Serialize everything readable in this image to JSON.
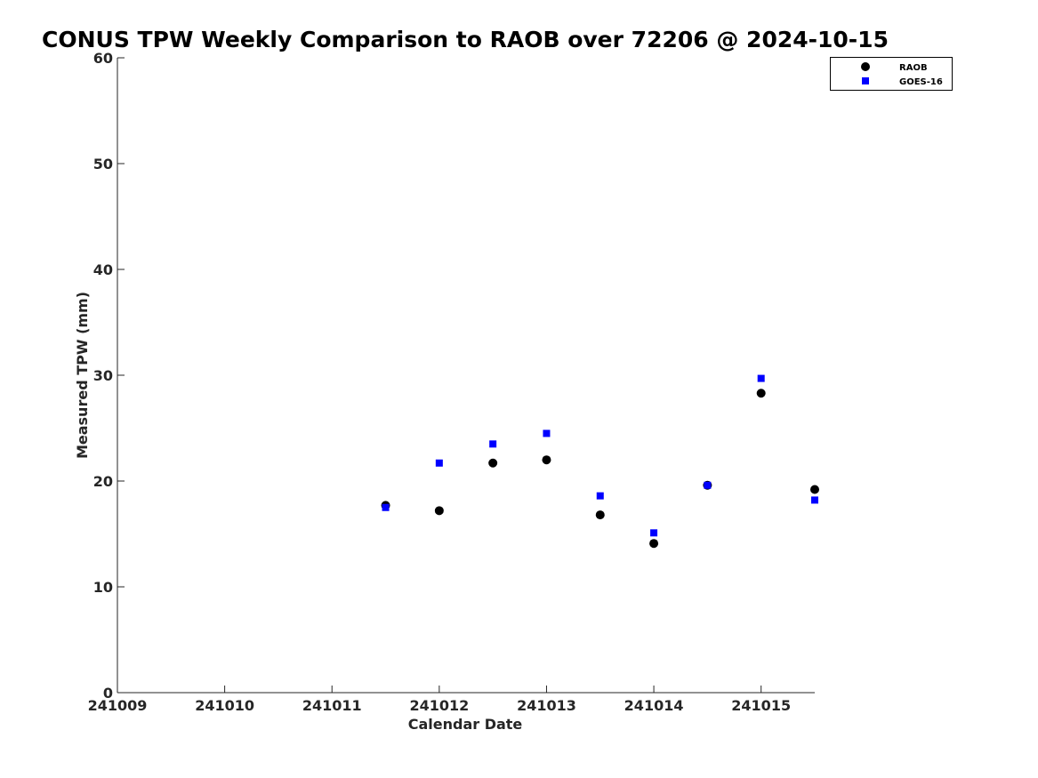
{
  "chart_data": {
    "type": "scatter",
    "title": "CONUS TPW Weekly Comparison to RAOB over 72206 @ 2024-10-15",
    "xlabel": "Calendar Date",
    "ylabel": "Measured TPW (mm)",
    "xlim": [
      241009,
      241015.5
    ],
    "ylim": [
      0,
      60
    ],
    "xticks": [
      241009,
      241010,
      241011,
      241012,
      241013,
      241014,
      241015
    ],
    "xtick_labels": [
      "241009",
      "241010",
      "241011",
      "241012",
      "241013",
      "241014",
      "241015"
    ],
    "yticks": [
      0,
      10,
      20,
      30,
      40,
      50,
      60
    ],
    "ytick_labels": [
      "0",
      "10",
      "20",
      "30",
      "40",
      "50",
      "60"
    ],
    "grid": false,
    "legend_position": "top-right",
    "series": [
      {
        "name": "RAOB",
        "marker": "circle",
        "color": "#000000",
        "x": [
          241011.5,
          241012,
          241012.5,
          241013,
          241013.5,
          241014,
          241014.5,
          241015,
          241015.5
        ],
        "y": [
          17.7,
          17.2,
          21.7,
          22.0,
          16.8,
          14.1,
          19.6,
          28.3,
          19.2
        ]
      },
      {
        "name": "GOES-16",
        "marker": "square",
        "color": "#0000ff",
        "x": [
          241011.5,
          241012,
          241012.5,
          241013,
          241013.5,
          241014,
          241014.5,
          241015,
          241015.5
        ],
        "y": [
          17.5,
          21.7,
          23.5,
          24.5,
          18.6,
          15.1,
          19.6,
          29.7,
          18.2
        ]
      }
    ]
  }
}
